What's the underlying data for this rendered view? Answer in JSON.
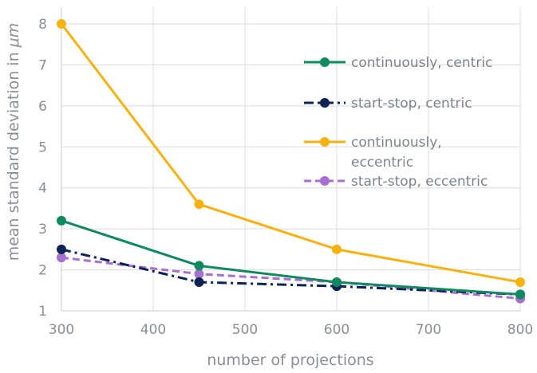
{
  "chart_data": {
    "type": "line",
    "title": "",
    "xlabel": "number of projections",
    "ylabel_prefix": "mean standard deviation in ",
    "ylabel_unit": "μm",
    "xlim": [
      300,
      800
    ],
    "ylim": [
      1,
      8
    ],
    "x_ticks": [
      300,
      400,
      500,
      600,
      700,
      800
    ],
    "y_ticks": [
      1,
      2,
      3,
      4,
      5,
      6,
      7,
      8
    ],
    "grid": true,
    "legend_position": "right",
    "series": [
      {
        "name": "continuously, centric",
        "color": "#0f8a5f",
        "dash": "solid",
        "x": [
          300,
          450,
          600,
          800
        ],
        "values": [
          3.2,
          2.1,
          1.7,
          1.4
        ]
      },
      {
        "name": "start-stop, centric",
        "color": "#0d2255",
        "dash": "dashdot",
        "x": [
          300,
          450,
          600,
          800
        ],
        "values": [
          2.5,
          1.7,
          1.6,
          1.4
        ]
      },
      {
        "name": "continuously, eccentric",
        "color": "#f7b20f",
        "dash": "solid",
        "x": [
          300,
          450,
          600,
          800
        ],
        "values": [
          8.0,
          3.6,
          2.5,
          1.7
        ]
      },
      {
        "name": "start-stop, eccentric",
        "color": "#a86fd0",
        "dash": "dashed",
        "x": [
          300,
          450,
          600,
          800
        ],
        "values": [
          2.3,
          1.9,
          1.7,
          1.3
        ]
      }
    ]
  }
}
